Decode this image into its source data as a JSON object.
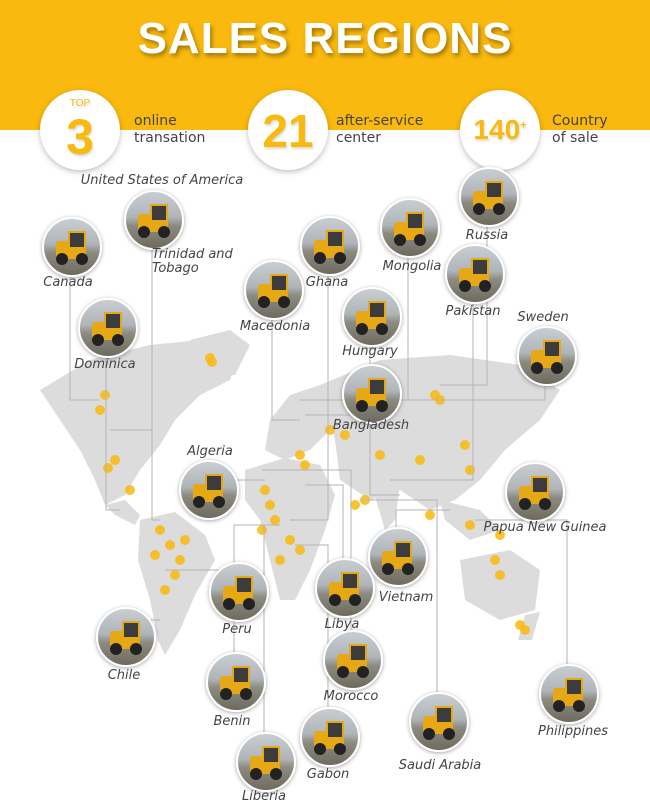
{
  "header": {
    "title": "SALES REGIONS"
  },
  "stats": [
    {
      "prefix": "TOP",
      "value": "3",
      "line1": "online",
      "line2": "transation"
    },
    {
      "value": "21",
      "line1": "after-service",
      "line2": "center"
    },
    {
      "value": "140",
      "suffix": "+",
      "line1": "Country",
      "line2": "of sale"
    }
  ],
  "colors": {
    "accent": "#f9b90e",
    "map": "#dcdcdc",
    "text": "#444444"
  },
  "countries": [
    "United States of America",
    "Canada",
    "Trinidad and Tobago",
    "Dominica",
    "Ghana",
    "Macedonia",
    "Mongolia",
    "Russia",
    "Pakistan",
    "Sweden",
    "Hungary",
    "Bangladesh",
    "Algeria",
    "Papua New Guinea",
    "Vietnam",
    "Peru",
    "Libya",
    "Chile",
    "Morocco",
    "Benin",
    "Philippines",
    "Saudi Arabia",
    "Gabon",
    "Liberia"
  ]
}
